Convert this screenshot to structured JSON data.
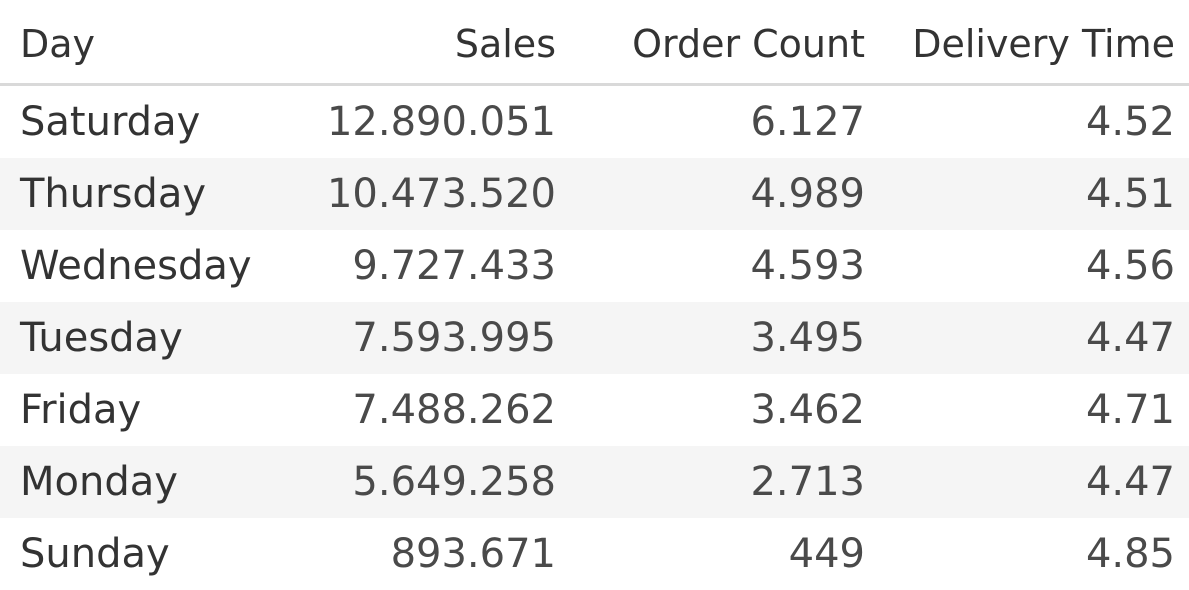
{
  "chart_data": {
    "type": "table",
    "columns": [
      "Day",
      "Sales",
      "Order Count",
      "Delivery Time"
    ],
    "rows": [
      [
        "Saturday",
        "12.890.051",
        "6.127",
        "4.52"
      ],
      [
        "Thursday",
        "10.473.520",
        "4.989",
        "4.51"
      ],
      [
        "Wednesday",
        "9.727.433",
        "4.593",
        "4.56"
      ],
      [
        "Tuesday",
        "7.593.995",
        "3.495",
        "4.47"
      ],
      [
        "Friday",
        "7.488.262",
        "3.462",
        "4.71"
      ],
      [
        "Monday",
        "5.649.258",
        "2.713",
        "4.47"
      ],
      [
        "Sunday",
        "893.671",
        "449",
        "4.85"
      ]
    ]
  }
}
